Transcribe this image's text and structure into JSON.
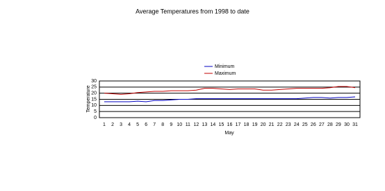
{
  "chart_data": {
    "type": "line",
    "title": "Average Temperatures from 1998 to date",
    "x_label": "May",
    "y_label": "Temperature",
    "categories": [
      "1",
      "2",
      "3",
      "4",
      "5",
      "6",
      "7",
      "8",
      "9",
      "10",
      "11",
      "12",
      "13",
      "14",
      "15",
      "16",
      "17",
      "18",
      "19",
      "20",
      "21",
      "22",
      "23",
      "24",
      "25",
      "26",
      "27",
      "28",
      "29",
      "30",
      "31"
    ],
    "series": [
      {
        "name": "Minimum",
        "color": "#0000c0",
        "values": [
          13,
          13,
          13,
          13,
          13.5,
          13,
          14,
          14,
          14.5,
          15,
          15,
          15.5,
          15.5,
          15.5,
          15.5,
          15.5,
          15.5,
          15.5,
          15.5,
          15.5,
          15.5,
          15.5,
          15.5,
          15.5,
          16,
          16.5,
          16.5,
          16,
          16.5,
          16.5,
          17
        ]
      },
      {
        "name": "Maximum",
        "color": "#c00000",
        "values": [
          20,
          19.5,
          19,
          19.5,
          20.5,
          21,
          21.5,
          21.5,
          22,
          22,
          22,
          22.5,
          24,
          24,
          23.5,
          23,
          23.5,
          23.5,
          23.5,
          22.5,
          22.5,
          23,
          23.5,
          24,
          24,
          24,
          24,
          24.5,
          25.5,
          25.5,
          24.5
        ]
      }
    ],
    "ylim": [
      0,
      30
    ],
    "yticks": [
      0,
      5,
      10,
      15,
      20,
      25,
      30
    ],
    "grid": true,
    "legend": "top"
  }
}
